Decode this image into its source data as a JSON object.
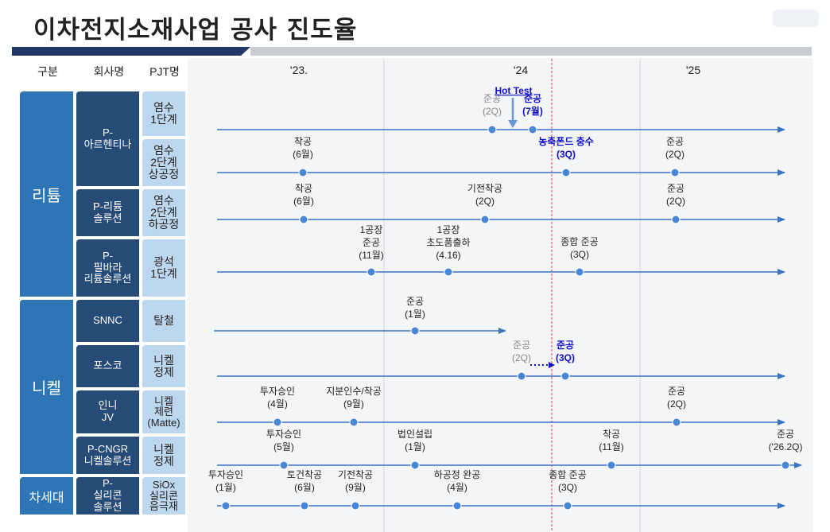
{
  "title": "이차전지소재사업 공사 진도율",
  "headers": {
    "category": "구분",
    "company": "회사명",
    "project": "PJT명"
  },
  "years": [
    "'23.",
    "'24",
    "'25"
  ],
  "groups": [
    {
      "label": "리튬"
    },
    {
      "label": "니켈"
    },
    {
      "label": "차세대"
    }
  ],
  "companies": [
    {
      "label": "P-\n아르헨티나"
    },
    {
      "label": "P-리튬\n솔루션"
    },
    {
      "label": "P-\n필바라\n리튬솔루션"
    },
    {
      "label": "SNNC"
    },
    {
      "label": "포스코"
    },
    {
      "label": "인니\nJV"
    },
    {
      "label": "P-CNGR\n니켈솔루션"
    },
    {
      "label": "P-\n실리콘\n솔루션"
    }
  ],
  "projects": [
    {
      "label": "염수\n1단계"
    },
    {
      "label": "염수\n2단계\n상공정"
    },
    {
      "label": "염수\n2단계\n하공정"
    },
    {
      "label": "광석\n1단계"
    },
    {
      "label": "탈철"
    },
    {
      "label": "니켈\n정제"
    },
    {
      "label": "니켈\n제련\n(Matte)"
    },
    {
      "label": "니켈\n정제"
    },
    {
      "label": "SiOx\n실리콘\n음극재"
    }
  ],
  "rows": [
    {
      "milestones": [
        {
          "lines": [
            "준공",
            "(2Q)"
          ],
          "style": "gray"
        },
        {
          "lines": [
            "준공",
            "(7월)"
          ],
          "style": "blue"
        }
      ],
      "extra": "Hot Test"
    },
    {
      "milestones": [
        {
          "lines": [
            "착공",
            "(6월)"
          ],
          "style": "normal"
        },
        {
          "lines": [
            "농축폰드 충수",
            "(3Q)"
          ],
          "style": "blue"
        },
        {
          "lines": [
            "준공",
            "(2Q)"
          ],
          "style": "normal"
        }
      ]
    },
    {
      "milestones": [
        {
          "lines": [
            "착공",
            "(6월)"
          ],
          "style": "normal"
        },
        {
          "lines": [
            "기전착공",
            "(2Q)"
          ],
          "style": "normal"
        },
        {
          "lines": [
            "준공",
            "(2Q)"
          ],
          "style": "normal"
        }
      ]
    },
    {
      "milestones": [
        {
          "lines": [
            "1공장",
            "준공",
            "(11월)"
          ],
          "style": "normal"
        },
        {
          "lines": [
            "1공장",
            "초도품출하",
            "(4.16)"
          ],
          "style": "normal"
        },
        {
          "lines": [
            "종합 준공",
            "(3Q)"
          ],
          "style": "normal"
        }
      ]
    },
    {
      "milestones": [
        {
          "lines": [
            "준공",
            "(1월)"
          ],
          "style": "normal"
        }
      ]
    },
    {
      "milestones": [
        {
          "lines": [
            "준공",
            "(2Q)"
          ],
          "style": "gray"
        },
        {
          "lines": [
            "준공",
            "(3Q)"
          ],
          "style": "blue"
        }
      ]
    },
    {
      "milestones": [
        {
          "lines": [
            "투자승인",
            "(4월)"
          ],
          "style": "normal"
        },
        {
          "lines": [
            "지분인수/착공",
            "(9월)"
          ],
          "style": "normal"
        },
        {
          "lines": [
            "준공",
            "(2Q)"
          ],
          "style": "normal"
        }
      ]
    },
    {
      "milestones": [
        {
          "lines": [
            "투자승인",
            "(5월)"
          ],
          "style": "normal"
        },
        {
          "lines": [
            "법인설립",
            "(1월)"
          ],
          "style": "normal"
        },
        {
          "lines": [
            "착공",
            "(11월)"
          ],
          "style": "normal"
        },
        {
          "lines": [
            "준공",
            "('26.2Q)"
          ],
          "style": "normal"
        }
      ]
    },
    {
      "milestones": [
        {
          "lines": [
            "투자승인",
            "(1월)"
          ],
          "style": "normal"
        },
        {
          "lines": [
            "토건착공",
            "(6월)"
          ],
          "style": "normal"
        },
        {
          "lines": [
            "기전착공",
            "(9월)"
          ],
          "style": "normal"
        },
        {
          "lines": [
            "하공정 완공",
            "(4월)"
          ],
          "style": "normal"
        },
        {
          "lines": [
            "종합 준공",
            "(3Q)"
          ],
          "style": "normal"
        }
      ]
    }
  ],
  "colors": {
    "line": "#3a73c4",
    "dot": "#4a86d6",
    "red": "#e04545",
    "blue_text": "#1010c8",
    "navy": "#1f3864"
  }
}
